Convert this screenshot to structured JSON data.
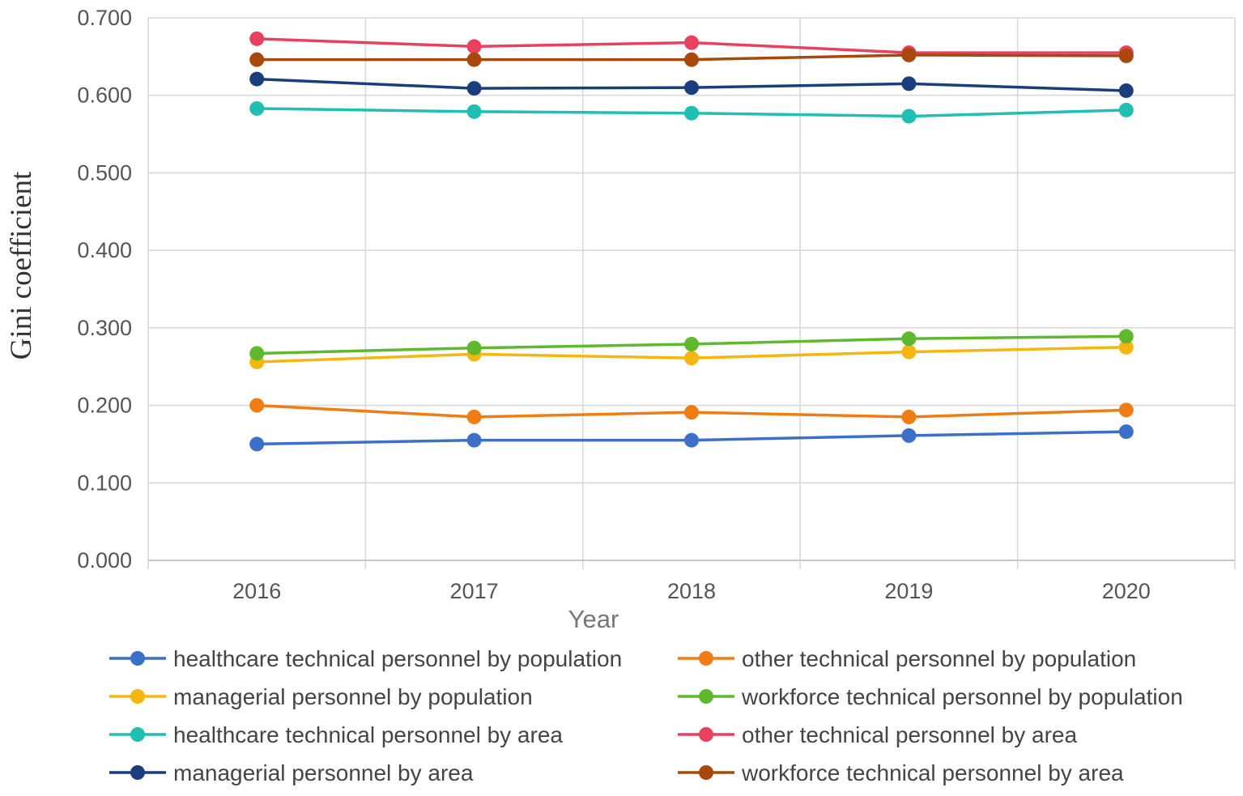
{
  "chart_data": {
    "type": "line",
    "title": "",
    "xlabel": "Year",
    "ylabel": "Gini coefficient",
    "categories": [
      "2016",
      "2017",
      "2018",
      "2019",
      "2020"
    ],
    "ylim": [
      0,
      0.7
    ],
    "yticks": [
      "0.000",
      "0.100",
      "0.200",
      "0.300",
      "0.400",
      "0.500",
      "0.600",
      "0.700"
    ],
    "grid": true,
    "legend_position": "bottom",
    "series": [
      {
        "name": "healthcare technical personnel by population",
        "color": "#3b6fc9",
        "values": [
          0.15,
          0.155,
          0.155,
          0.161,
          0.166
        ]
      },
      {
        "name": "other technical personnel by population",
        "color": "#f07c14",
        "values": [
          0.2,
          0.185,
          0.191,
          0.185,
          0.194
        ]
      },
      {
        "name": "managerial personnel by population",
        "color": "#f5b60f",
        "values": [
          0.256,
          0.266,
          0.261,
          0.269,
          0.275
        ]
      },
      {
        "name": "workforce technical personnel by population",
        "color": "#5fb82d",
        "values": [
          0.267,
          0.274,
          0.279,
          0.286,
          0.289
        ]
      },
      {
        "name": "healthcare technical personnel by area",
        "color": "#1fbfb3",
        "values": [
          0.583,
          0.579,
          0.577,
          0.573,
          0.581
        ]
      },
      {
        "name": "other technical personnel by area",
        "color": "#e8415f",
        "values": [
          0.673,
          0.663,
          0.668,
          0.655,
          0.655
        ]
      },
      {
        "name": "managerial personnel by area",
        "color": "#1a3e7d",
        "values": [
          0.621,
          0.609,
          0.61,
          0.615,
          0.606
        ]
      },
      {
        "name": "workforce technical personnel by area",
        "color": "#a8480c",
        "values": [
          0.646,
          0.646,
          0.646,
          0.652,
          0.651
        ]
      }
    ]
  }
}
